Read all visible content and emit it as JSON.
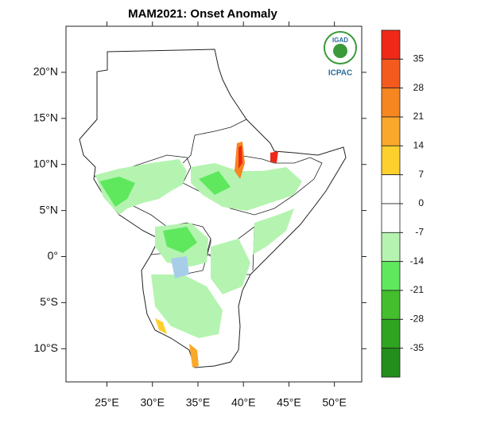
{
  "map": {
    "title": "MAM2021: Onset Anomaly",
    "logo": {
      "name": "IGAD",
      "org": "ICPAC"
    },
    "xlim": [
      20.5,
      53
    ],
    "ylim": [
      -13.6,
      25
    ],
    "xticks": [
      {
        "value": 25,
        "label": "25°E"
      },
      {
        "value": 30,
        "label": "30°E"
      },
      {
        "value": 35,
        "label": "35°E"
      },
      {
        "value": 40,
        "label": "40°E"
      },
      {
        "value": 45,
        "label": "45°E"
      },
      {
        "value": 50,
        "label": "50°E"
      }
    ],
    "yticks": [
      {
        "value": 20,
        "label": "20°N"
      },
      {
        "value": 15,
        "label": "15°N"
      },
      {
        "value": 10,
        "label": "10°N"
      },
      {
        "value": 5,
        "label": "5°N"
      },
      {
        "value": 0,
        "label": "0°"
      },
      {
        "value": -5,
        "label": "5°S"
      },
      {
        "value": -10,
        "label": "10°S"
      }
    ],
    "colorbar": {
      "levels": [
        35,
        28,
        21,
        14,
        7,
        0,
        -7,
        -14,
        -21,
        -28,
        -35
      ],
      "colors": [
        "#f02818",
        "#f45a1e",
        "#f6861f",
        "#f9a82c",
        "#fdd02e",
        "#ffffff",
        "#ffffff",
        "#b4f4b0",
        "#5fe85e",
        "#44be2c",
        "#2fa420",
        "#248e1c"
      ]
    }
  }
}
